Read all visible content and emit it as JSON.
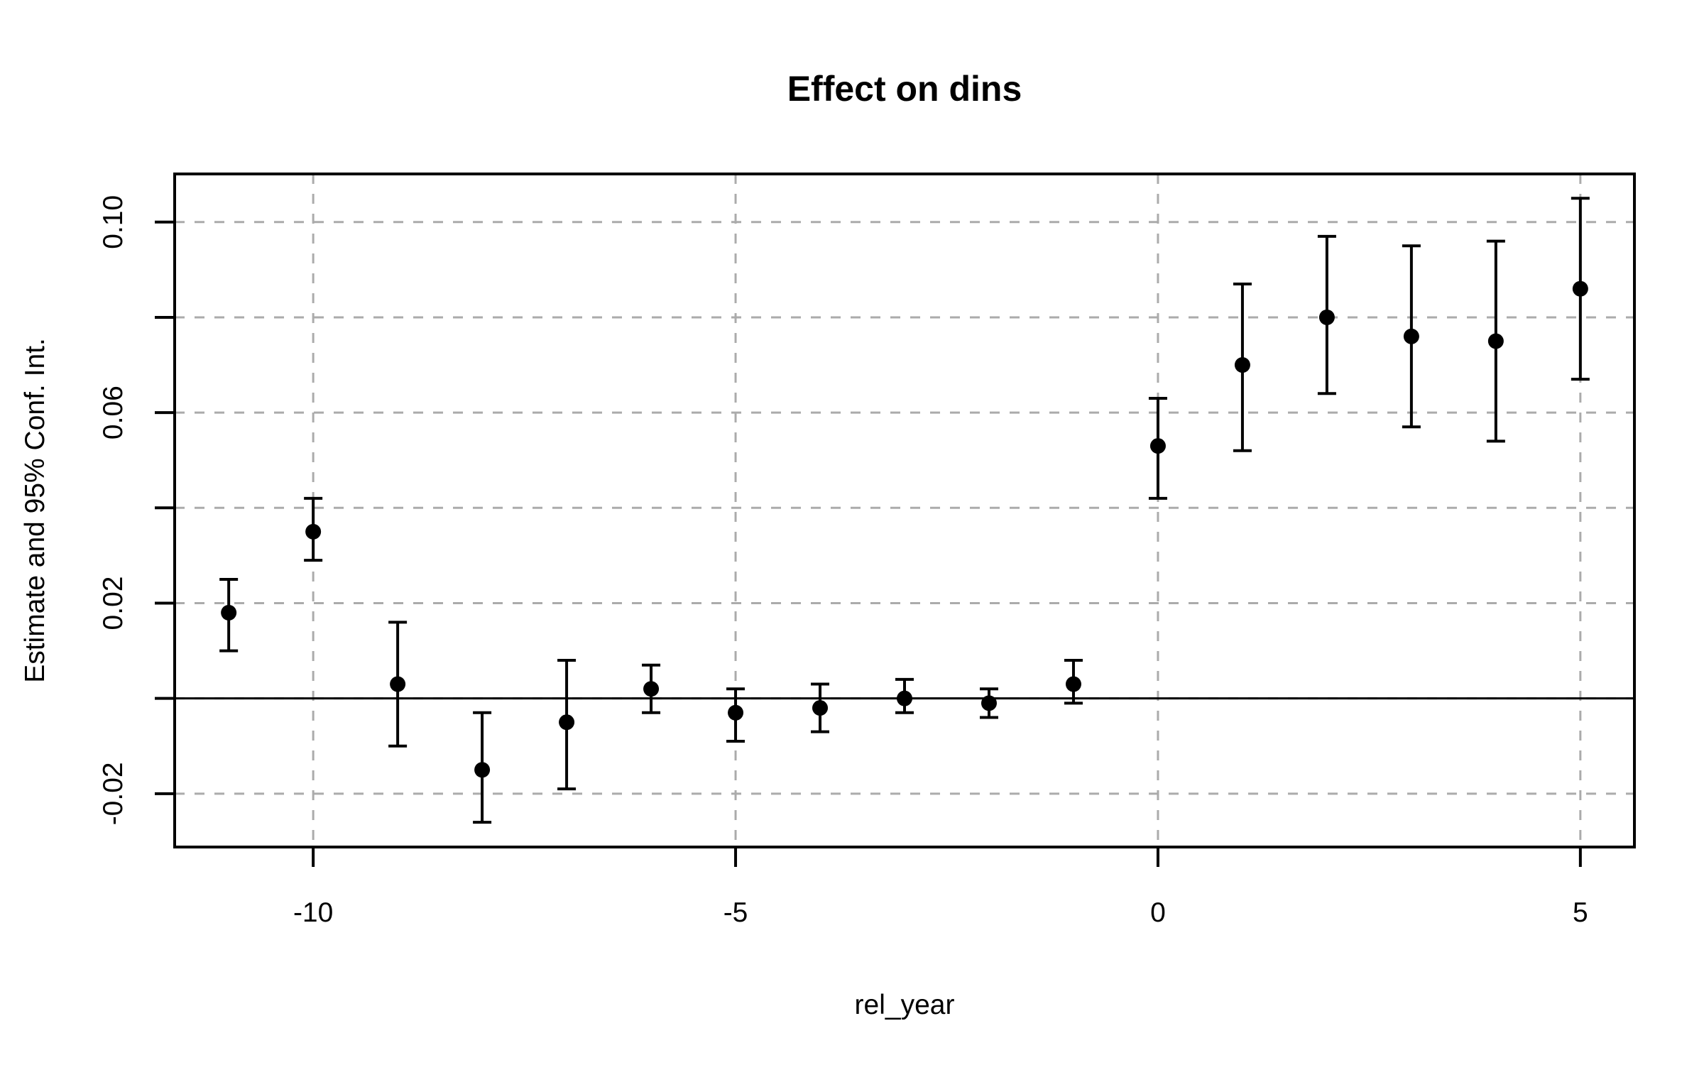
{
  "chart_data": {
    "type": "scatter",
    "subtype": "point-estimates-with-95ci-error-bars",
    "title": "Effect on dins",
    "xlabel": "rel_year",
    "ylabel": "Estimate and 95% Conf. Int.",
    "x": [
      -11,
      -10,
      -9,
      -8,
      -7,
      -6,
      -5,
      -4,
      -3,
      -2,
      -1,
      0,
      1,
      2,
      3,
      4,
      5
    ],
    "series": [
      {
        "name": "estimate",
        "values": [
          0.018,
          0.035,
          0.003,
          -0.015,
          -0.005,
          0.002,
          -0.003,
          -0.002,
          0.0,
          -0.001,
          0.003,
          0.053,
          0.07,
          0.08,
          0.076,
          0.075,
          0.086
        ]
      },
      {
        "name": "ci_lower",
        "values": [
          0.01,
          0.029,
          -0.01,
          -0.026,
          -0.019,
          -0.003,
          -0.009,
          -0.007,
          -0.003,
          -0.004,
          -0.001,
          0.042,
          0.052,
          0.064,
          0.057,
          0.054,
          0.067
        ]
      },
      {
        "name": "ci_upper",
        "values": [
          0.025,
          0.042,
          0.016,
          -0.003,
          0.008,
          0.007,
          0.002,
          0.003,
          0.004,
          0.002,
          0.008,
          0.063,
          0.087,
          0.097,
          0.095,
          0.096,
          0.105
        ]
      }
    ],
    "x_ticks": {
      "values": [
        -10,
        -5,
        0,
        5
      ],
      "labels": [
        "-10",
        "-5",
        "0",
        "5"
      ]
    },
    "y_ticks": {
      "values": [
        -0.02,
        0.0,
        0.02,
        0.04,
        0.06,
        0.08,
        0.1
      ],
      "labeled_values": [
        -0.02,
        0.02,
        0.06,
        0.1
      ],
      "labels": [
        "-0.02",
        "0.02",
        "0.06",
        "0.10"
      ]
    },
    "xlim": [
      -11.64,
      5.64
    ],
    "ylim": [
      -0.0312,
      0.1101
    ],
    "grid": "dashed, at all x and y ticks",
    "reference_line_y": 0,
    "legend": "none",
    "colors": {
      "point": "#000000",
      "error_bar": "#000000",
      "grid": "#ababab",
      "axis": "#000000",
      "background": "#ffffff"
    }
  }
}
